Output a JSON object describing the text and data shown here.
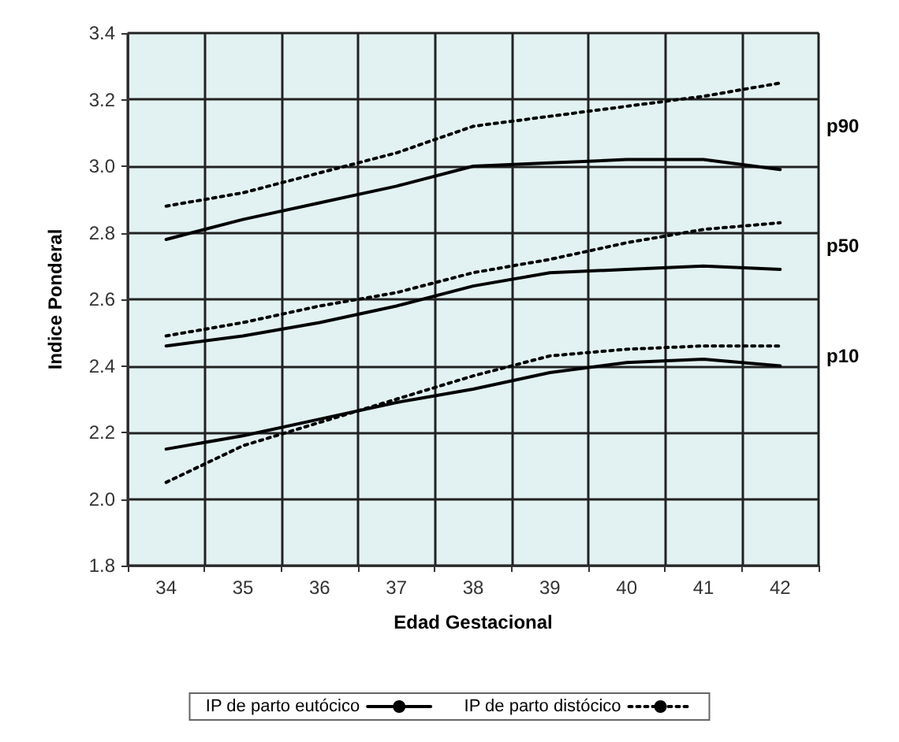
{
  "chart_data": {
    "type": "line",
    "xlabel": "Edad Gestacional",
    "ylabel": "Indice Ponderal",
    "categories": [
      "34",
      "35",
      "36",
      "37",
      "38",
      "39",
      "40",
      "41",
      "42"
    ],
    "series": [
      {
        "name": "IP de parto eutócico",
        "color": "#000000",
        "line_style": "solid",
        "values": [
          2.78,
          2.84,
          2.89,
          2.94,
          3.0,
          3.01,
          3.02,
          3.02,
          2.99
        ]
      },
      {
        "name": "IP de parto distócico",
        "color": "#000000",
        "line_style": "dotted",
        "values": [
          2.88,
          2.92,
          2.98,
          3.04,
          3.12,
          3.15,
          3.18,
          3.21,
          3.25
        ]
      },
      {
        "color": "#000000",
        "line_style": "solid",
        "values": [
          2.46,
          2.49,
          2.53,
          2.58,
          2.64,
          2.68,
          2.69,
          2.7,
          2.69
        ]
      },
      {
        "color": "#000000",
        "line_style": "dotted",
        "values": [
          2.49,
          2.53,
          2.58,
          2.62,
          2.68,
          2.72,
          2.77,
          2.81,
          2.83
        ]
      },
      {
        "color": "#000000",
        "line_style": "solid",
        "values": [
          2.15,
          2.19,
          2.24,
          2.29,
          2.33,
          2.38,
          2.41,
          2.42,
          2.4
        ]
      },
      {
        "color": "#000000",
        "line_style": "dotted",
        "values": [
          2.05,
          2.16,
          2.23,
          2.3,
          2.37,
          2.43,
          2.45,
          2.46,
          2.46
        ]
      }
    ],
    "ylim": [
      1.8,
      3.4
    ],
    "yticks": [
      {
        "value": 1.8,
        "label": "1.8"
      },
      {
        "value": 2,
        "label": "2.0"
      },
      {
        "value": 2.2,
        "label": "2.2"
      },
      {
        "value": 2.4,
        "label": "2.4"
      },
      {
        "value": 2.6,
        "label": "2.6"
      },
      {
        "value": 2.8,
        "label": "2.8"
      },
      {
        "value": 3,
        "label": "3.0"
      },
      {
        "value": 3.2,
        "label": "3.2"
      },
      {
        "value": 3.4,
        "label": "3.4"
      }
    ],
    "annotations": [
      "p90",
      "p50",
      "p10"
    ],
    "grid": true,
    "legend": "bottom",
    "marker": "none"
  }
}
